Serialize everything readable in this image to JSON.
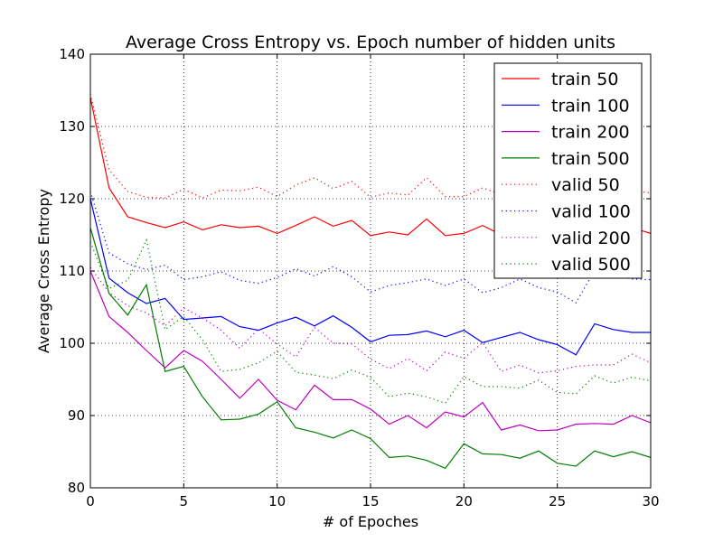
{
  "chart_data": {
    "type": "line",
    "title": "Average Cross Entropy vs. Epoch number of hidden units",
    "xlabel": "# of Epoches",
    "ylabel": "Average Cross Entropy",
    "xlim": [
      0,
      30
    ],
    "ylim": [
      80,
      140
    ],
    "xticks": [
      0,
      5,
      10,
      15,
      20,
      25,
      30
    ],
    "yticks": [
      80,
      90,
      100,
      110,
      120,
      130,
      140
    ],
    "grid": true,
    "legend_position": "top-right",
    "x": [
      0,
      1,
      2,
      3,
      4,
      5,
      6,
      7,
      8,
      9,
      10,
      11,
      12,
      13,
      14,
      15,
      16,
      17,
      18,
      19,
      20,
      21,
      22,
      23,
      24,
      25,
      26,
      27,
      28,
      29,
      30
    ],
    "series": [
      {
        "name": "train 50",
        "color": "#ff0000",
        "style": "solid",
        "values": [
          134,
          121.5,
          117.5,
          116.7,
          116,
          116.8,
          115.7,
          116.4,
          116,
          116.2,
          115.2,
          116.3,
          117.5,
          116.2,
          117,
          114.9,
          115.4,
          115,
          117.2,
          114.9,
          115.2,
          116.3,
          115,
          115.6,
          115.3,
          114.7,
          116,
          115.8,
          116.8,
          116,
          115.2
        ]
      },
      {
        "name": "train 100",
        "color": "#0000ff",
        "style": "solid",
        "values": [
          120,
          109,
          107,
          105.5,
          106.2,
          103.3,
          103.5,
          103.7,
          102.3,
          101.8,
          102.8,
          103.6,
          102.4,
          103.8,
          102.2,
          100.2,
          101.1,
          101.2,
          101.7,
          100.9,
          101.8,
          100.1,
          100.8,
          101.5,
          100.5,
          99.8,
          98.4,
          102.7,
          101.9,
          101.5,
          101.5
        ]
      },
      {
        "name": "train 200",
        "color": "#bf00bf",
        "style": "solid",
        "values": [
          110,
          103.7,
          101.5,
          99,
          96.6,
          99,
          97.5,
          95,
          92.4,
          95,
          92.1,
          90.8,
          94.2,
          92.2,
          92.2,
          90.9,
          88.8,
          90,
          88.3,
          90.5,
          89.8,
          91.8,
          88,
          88.7,
          87.9,
          88,
          88.8,
          88.9,
          88.8,
          90,
          89
        ]
      },
      {
        "name": "train 500",
        "color": "#007f00",
        "style": "solid",
        "values": [
          116,
          106.9,
          103.9,
          108.1,
          96.1,
          96.8,
          92.6,
          89.4,
          89.5,
          90.2,
          91.9,
          88.3,
          87.7,
          86.9,
          88,
          86.8,
          84.2,
          84.4,
          83.8,
          82.7,
          86.1,
          84.7,
          84.6,
          84.1,
          85.1,
          83.4,
          83,
          85.1,
          84.3,
          85,
          84.2
        ]
      },
      {
        "name": "valid 50",
        "color": "#ff0000",
        "style": "dotted",
        "values": [
          134.5,
          124,
          121,
          120.2,
          120.1,
          121.3,
          120.1,
          121.2,
          121.1,
          121.6,
          120.3,
          121.9,
          122.9,
          121.4,
          122.4,
          120.2,
          120.8,
          120.5,
          122.9,
          120.3,
          120.3,
          121.5,
          120.6,
          121.2,
          121.6,
          120.9,
          121.3,
          120.9,
          121.4,
          121.1,
          120.8
        ]
      },
      {
        "name": "valid 100",
        "color": "#0000ff",
        "style": "dotted",
        "values": [
          121,
          112.5,
          111,
          110.2,
          110.8,
          108.8,
          109.2,
          109.9,
          108.7,
          108.3,
          109.1,
          110.3,
          109.3,
          110.6,
          109.2,
          107.1,
          108,
          108.4,
          108.9,
          108,
          108.9,
          107,
          107.7,
          108.9,
          107.7,
          107.1,
          105.6,
          110.1,
          109.4,
          108.9,
          108.8
        ]
      },
      {
        "name": "valid 200",
        "color": "#bf00bf",
        "style": "dotted",
        "values": [
          110.5,
          107,
          105.2,
          104.2,
          102.4,
          104.9,
          103.5,
          101.8,
          99.3,
          102,
          99.9,
          98.1,
          102.2,
          100,
          99.9,
          97.8,
          96.5,
          97.9,
          96.2,
          98.8,
          97.9,
          100.1,
          96.1,
          97,
          95.9,
          96.2,
          96.8,
          97,
          97,
          98.5,
          97.3
        ]
      },
      {
        "name": "valid 500",
        "color": "#007f00",
        "style": "dotted",
        "values": [
          114,
          107.6,
          108.7,
          114.3,
          101.9,
          103.7,
          100.5,
          96.1,
          96.4,
          97.3,
          98.9,
          96,
          95.6,
          95.1,
          96.3,
          95.3,
          92.6,
          93.1,
          92.6,
          91.7,
          95.4,
          94,
          94,
          93.8,
          94.9,
          93.2,
          93,
          95.5,
          94.5,
          95.3,
          94.8
        ]
      }
    ]
  }
}
